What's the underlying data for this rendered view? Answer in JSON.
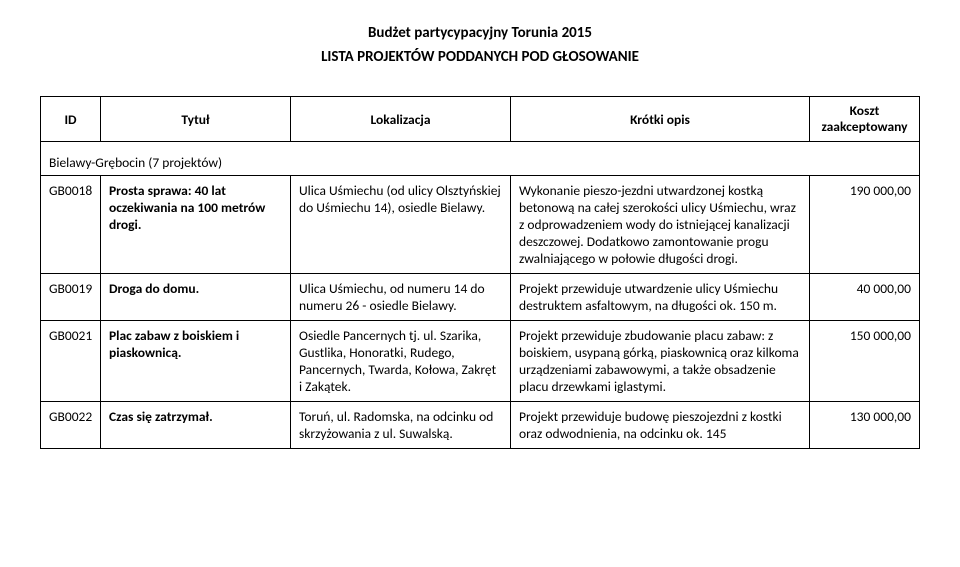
{
  "header": {
    "title": "Budżet partycypacyjny Torunia 2015",
    "subtitle": "LISTA PROJEKTÓW PODDANYCH POD GŁOSOWANIE"
  },
  "table": {
    "columns": {
      "id": "ID",
      "title": "Tytuł",
      "loc": "Lokalizacja",
      "desc": "Krótki opis",
      "cost_line1": "Koszt",
      "cost_line2": "zaakceptowany"
    },
    "group": "Bielawy-Grębocin (7 projektów)",
    "rows": [
      {
        "id": "GB0018",
        "title": "Prosta sprawa: 40 lat oczekiwania na 100 metrów drogi.",
        "loc": "Ulica Uśmiechu (od ulicy Olsztyńskiej do Uśmiechu 14), osiedle Bielawy.",
        "desc": "Wykonanie pieszo-jezdni utwardzonej kostką betonową na całej szerokości ulicy Uśmiechu, wraz z odprowadzeniem wody do istniejącej kanalizacji deszczowej. Dodatkowo zamontowanie progu zwalniającego w połowie długości drogi.",
        "cost": "190 000,00"
      },
      {
        "id": "GB0019",
        "title": "Droga do domu.",
        "loc": "Ulica Uśmiechu, od numeru 14 do numeru 26 - osiedle Bielawy.",
        "desc": "Projekt przewiduje utwardzenie ulicy Uśmiechu destruktem asfaltowym, na długości ok. 150 m.",
        "cost": "40 000,00"
      },
      {
        "id": "GB0021",
        "title": "Plac zabaw z boiskiem i piaskownicą.",
        "loc": "Osiedle Pancernych tj. ul. Szarika, Gustlika, Honoratki, Rudego, Pancernych, Twarda, Kołowa, Zakręt i Zakątek.",
        "desc": "Projekt przewiduje zbudowanie placu zabaw: z boiskiem, usypaną górką, piaskownicą oraz kilkoma urządzeniami zabawowymi, a także obsadzenie placu drzewkami iglastymi.",
        "cost": "150 000,00"
      },
      {
        "id": "GB0022",
        "title": "Czas się zatrzymał.",
        "loc": "Toruń, ul. Radomska, na odcinku od skrzyżowania z ul. Suwalską.",
        "desc": "Projekt przewiduje budowę pieszojezdni z kostki oraz odwodnienia, na odcinku ok. 145",
        "cost": "130 000,00"
      }
    ]
  }
}
